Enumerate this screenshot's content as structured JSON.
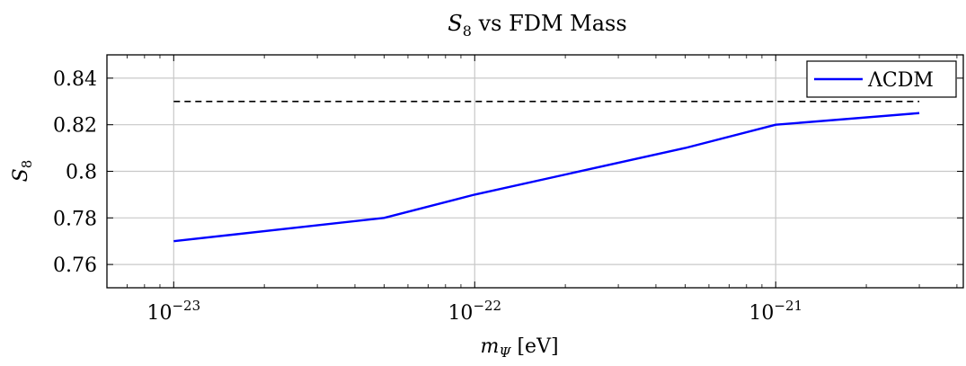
{
  "chart_data": {
    "type": "line",
    "title": {
      "var": "S",
      "sub": "8",
      "text": " vs FDM Mass"
    },
    "xlabel": {
      "var": "m",
      "sub": "Ψ",
      "text": " [eV]"
    },
    "ylabel": {
      "var": "S",
      "sub": "8"
    },
    "xscale": "log",
    "xlim": [
      6e-24,
      4.2e-21
    ],
    "ylim": [
      0.75,
      0.85
    ],
    "xticks": [
      {
        "value": 1e-23,
        "base": "10",
        "exp": "−23"
      },
      {
        "value": 1e-22,
        "base": "10",
        "exp": "−22"
      },
      {
        "value": 1e-21,
        "base": "10",
        "exp": "−21"
      }
    ],
    "yticks": [
      {
        "value": 0.76,
        "label": "0.76"
      },
      {
        "value": 0.78,
        "label": "0.78"
      },
      {
        "value": 0.8,
        "label": "0.8"
      },
      {
        "value": 0.82,
        "label": "0.82"
      },
      {
        "value": 0.84,
        "label": "0.84"
      }
    ],
    "grid": true,
    "legend": {
      "position": "top-right"
    },
    "series": [
      {
        "name": "ΛCDM",
        "color": "#0000ff",
        "style": "solid",
        "x": [
          1e-23,
          5e-23,
          1e-22,
          5e-22,
          1e-21,
          3e-21
        ],
        "y": [
          0.77,
          0.78,
          0.79,
          0.81,
          0.82,
          0.825
        ]
      },
      {
        "color": "#000000",
        "style": "dashed",
        "x": [
          1e-23,
          3e-21
        ],
        "y": [
          0.83,
          0.83
        ]
      }
    ]
  }
}
